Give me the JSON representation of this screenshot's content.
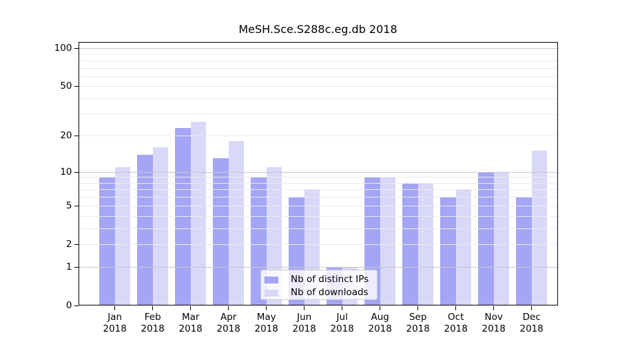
{
  "title": "MeSH.Sce.S288c.eg.db 2018",
  "chart_data": {
    "type": "bar",
    "title": "MeSH.Sce.S288c.eg.db 2018",
    "months": [
      "Jan",
      "Feb",
      "Mar",
      "Apr",
      "May",
      "Jun",
      "Jul",
      "Aug",
      "Sep",
      "Oct",
      "Nov",
      "Dec"
    ],
    "year": "2018",
    "categories": [
      "Jan 2018",
      "Feb 2018",
      "Mar 2018",
      "Apr 2018",
      "May 2018",
      "Jun 2018",
      "Jul 2018",
      "Aug 2018",
      "Sep 2018",
      "Oct 2018",
      "Nov 2018",
      "Dec 2018"
    ],
    "series": [
      {
        "name": "Nb of distinct IPs",
        "key": "distinct-ips",
        "color": "#a5a5f5",
        "values": [
          9,
          14,
          23,
          13,
          9,
          6,
          1,
          9,
          8,
          6,
          10,
          6
        ]
      },
      {
        "name": "Nb of downloads",
        "key": "downloads",
        "color": "#d8d8f8",
        "values": [
          11,
          16,
          26,
          18,
          11,
          7,
          1,
          9,
          8,
          7,
          10,
          15
        ]
      }
    ],
    "xlabel": "",
    "ylabel": "",
    "yscale": "log1p",
    "ylim": [
      0,
      100
    ],
    "yticks": [
      0,
      1,
      2,
      5,
      10,
      20,
      50,
      100
    ],
    "major_gridlines": [
      1,
      10,
      100
    ],
    "minor_gridlines": [
      2,
      3,
      4,
      5,
      6,
      7,
      8,
      9,
      20,
      30,
      40,
      50,
      60,
      70,
      80,
      90
    ],
    "grid": true,
    "legend_position": "lower-center-inside"
  },
  "colors": {
    "bar_distinct_ips": "#a5a5f5",
    "bar_downloads": "#d8d8f8",
    "grid_minor": "#ebebeb",
    "grid_major": "#c8c8c8",
    "axis": "#000000",
    "background": "#ffffff",
    "legend_border": "#cccccc",
    "legend_background": "rgba(255,255,255,0.8)"
  }
}
